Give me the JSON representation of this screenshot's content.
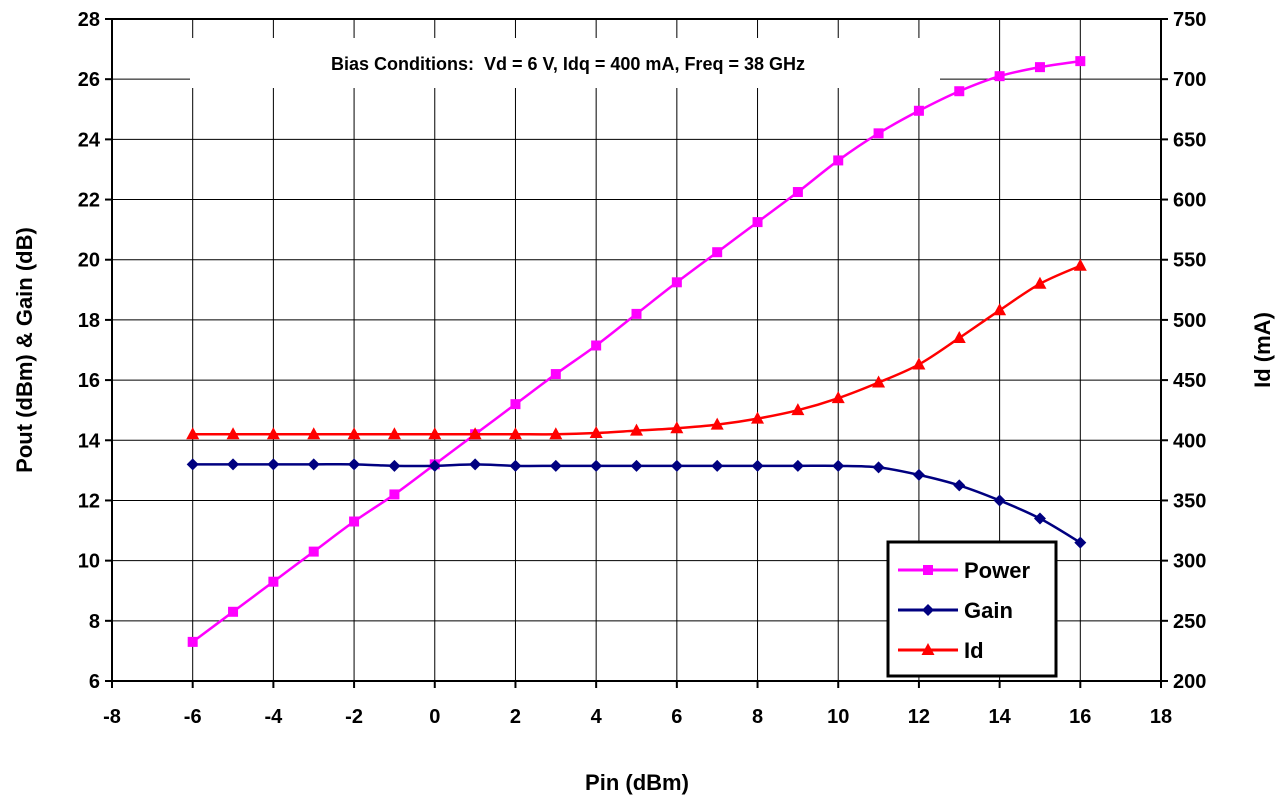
{
  "chart_data": {
    "type": "line",
    "title": "",
    "annotation": "Bias Conditions:  Vd = 6 V, Idq = 400 mA, Freq = 38 GHz",
    "xlabel": "Pin (dBm)",
    "ylabel": "Pout (dBm) & Gain (dB)",
    "y2label": "Id (mA)",
    "xlim": [
      -8,
      18
    ],
    "ylim": [
      6,
      28
    ],
    "y2lim": [
      200,
      750
    ],
    "xticks": [
      "-8",
      "-6",
      "-4",
      "-2",
      "0",
      "2",
      "4",
      "6",
      "8",
      "10",
      "12",
      "14",
      "16",
      "18"
    ],
    "yticks": [
      "6",
      "8",
      "10",
      "12",
      "14",
      "16",
      "18",
      "20",
      "22",
      "24",
      "26",
      "28"
    ],
    "y2ticks": [
      "200",
      "250",
      "300",
      "350",
      "400",
      "450",
      "500",
      "550",
      "600",
      "650",
      "700",
      "750"
    ],
    "grid": true,
    "legend_position": "bottom-right",
    "x": [
      -6,
      -5,
      -4,
      -3,
      -2,
      -1,
      0,
      1,
      2,
      3,
      4,
      5,
      6,
      7,
      8,
      9,
      10,
      11,
      12,
      13,
      14,
      15,
      16
    ],
    "series": [
      {
        "name": "Power",
        "axis": "left",
        "marker": "square",
        "color": "#FF00FF",
        "values": [
          7.3,
          8.3,
          9.3,
          10.3,
          11.3,
          12.2,
          13.2,
          14.2,
          15.2,
          16.2,
          17.15,
          18.2,
          19.25,
          20.25,
          21.25,
          22.25,
          23.3,
          24.2,
          24.95,
          25.6,
          26.1,
          26.4,
          26.6
        ]
      },
      {
        "name": "Gain",
        "axis": "left",
        "marker": "diamond",
        "color": "#000080",
        "values": [
          13.2,
          13.2,
          13.2,
          13.2,
          13.2,
          13.15,
          13.15,
          13.2,
          13.15,
          13.15,
          13.15,
          13.15,
          13.15,
          13.15,
          13.15,
          13.15,
          13.15,
          13.1,
          12.85,
          12.5,
          12.0,
          11.4,
          10.6
        ]
      },
      {
        "name": "Id",
        "axis": "right",
        "marker": "triangle",
        "color": "#FF0000",
        "values": [
          405,
          405,
          405,
          405,
          405,
          405,
          405,
          405,
          405,
          405,
          406,
          408,
          410,
          413,
          418,
          425,
          435,
          448,
          463,
          485,
          508,
          530,
          545
        ]
      }
    ]
  }
}
